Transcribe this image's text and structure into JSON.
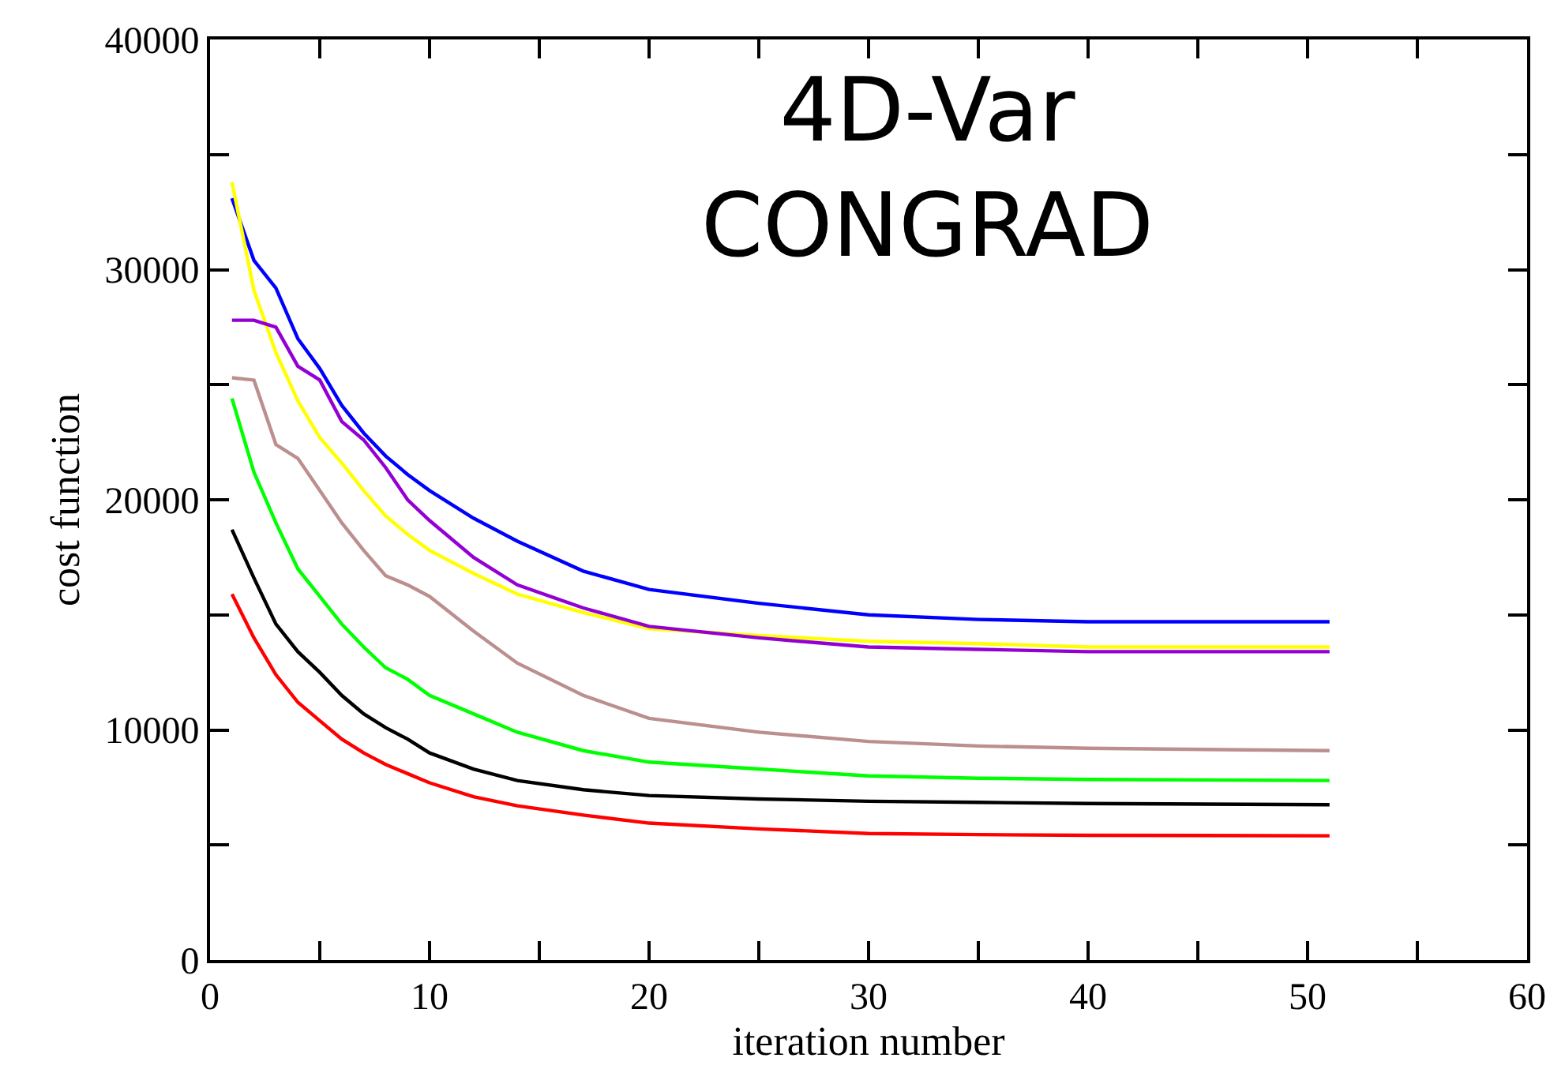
{
  "chart_data": {
    "type": "line",
    "xlabel": "iteration number",
    "ylabel": "cost function",
    "annotations": [
      "4D-Var\nCONGRAD"
    ],
    "x": [
      1,
      2,
      3,
      4,
      5,
      6,
      7,
      8,
      9,
      10,
      12,
      14,
      17,
      20,
      25,
      30,
      35,
      40,
      51
    ],
    "series": [
      {
        "color": "#0000ff",
        "values": [
          33100,
          30400,
          29200,
          27000,
          25700,
          24100,
          22900,
          21900,
          21100,
          20400,
          19200,
          18200,
          16900,
          16100,
          15500,
          15000,
          14800,
          14700,
          14700
        ]
      },
      {
        "color": "#ffff00",
        "values": [
          33800,
          29100,
          26400,
          24300,
          22700,
          21600,
          20400,
          19300,
          18500,
          17800,
          16800,
          15900,
          15100,
          14400,
          14100,
          13850,
          13750,
          13600,
          13600
        ]
      },
      {
        "color": "#9400d3",
        "values": [
          27800,
          27800,
          27500,
          25800,
          25200,
          23400,
          22600,
          21400,
          20000,
          19100,
          17500,
          16300,
          15300,
          14500,
          14000,
          13600,
          13500,
          13400,
          13400
        ]
      },
      {
        "color": "#bc8f8f",
        "values": [
          25300,
          25200,
          22400,
          21800,
          20400,
          19000,
          17800,
          16700,
          16300,
          15800,
          14300,
          12900,
          11500,
          10500,
          9900,
          9500,
          9300,
          9200,
          9100
        ]
      },
      {
        "color": "#00ff00",
        "values": [
          24400,
          21200,
          19000,
          17000,
          15800,
          14600,
          13600,
          12700,
          12200,
          11500,
          10700,
          9900,
          9100,
          8600,
          8300,
          8000,
          7900,
          7850,
          7800
        ]
      },
      {
        "color": "#000000",
        "values": [
          18700,
          16600,
          14600,
          13400,
          12500,
          11500,
          10700,
          10100,
          9600,
          9000,
          8300,
          7800,
          7400,
          7150,
          7000,
          6900,
          6850,
          6800,
          6750
        ]
      },
      {
        "color": "#ff0000",
        "values": [
          15900,
          14000,
          12400,
          11200,
          10400,
          9600,
          9000,
          8500,
          8100,
          7700,
          7100,
          6700,
          6300,
          5950,
          5700,
          5500,
          5450,
          5420,
          5400
        ]
      }
    ],
    "xlim": [
      0,
      60
    ],
    "xticks": [
      0,
      {
        "value": 5,
        "label": null
      },
      10,
      {
        "value": 15,
        "label": null
      },
      20,
      {
        "value": 25,
        "label": null
      },
      30,
      {
        "value": 35,
        "label": null
      },
      40,
      {
        "value": 45,
        "label": null
      },
      50,
      {
        "value": 55,
        "label": null
      },
      60
    ],
    "ylim": [
      0,
      40000
    ],
    "yticks": [
      0,
      {
        "value": 5000,
        "label": null
      },
      10000,
      {
        "value": 15000,
        "label": null
      },
      20000,
      {
        "value": 25000,
        "label": null
      },
      30000,
      {
        "value": 35000,
        "label": null
      },
      40000
    ],
    "marker": "none",
    "line_style": "solid"
  }
}
